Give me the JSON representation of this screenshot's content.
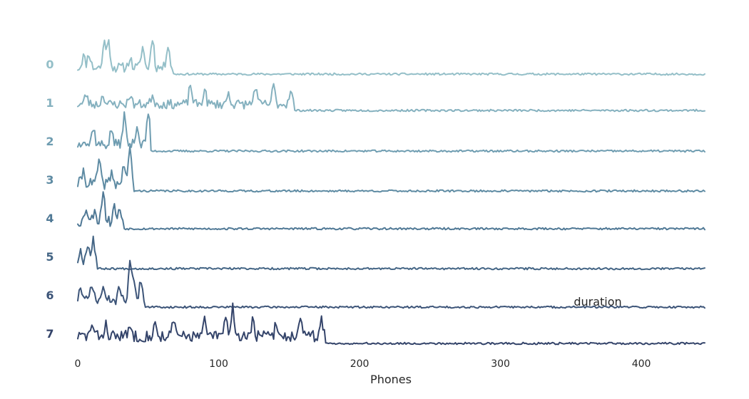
{
  "chart_data": {
    "type": "line",
    "title": "",
    "xlabel": "Phones",
    "ylabel": "",
    "xlim": [
      0,
      445
    ],
    "x_ticks": [
      0,
      100,
      200,
      300,
      400
    ],
    "grid": false,
    "annotation": "duration",
    "colors": [
      "#94bfc8",
      "#85b1bf",
      "#6f9db1",
      "#5e8ba3",
      "#4f7895",
      "#446585",
      "#3c5478",
      "#34446a"
    ],
    "series": [
      {
        "name": "0",
        "active_end": 67,
        "peaks": [
          [
            4,
            0.35
          ],
          [
            8,
            0.45
          ],
          [
            19,
            0.85
          ],
          [
            22,
            0.75
          ],
          [
            37,
            0.3
          ],
          [
            46,
            0.65
          ],
          [
            53,
            0.95
          ],
          [
            64,
            0.75
          ]
        ],
        "noise": 0.3,
        "seed": 11
      },
      {
        "name": "1",
        "active_end": 153,
        "peaks": [
          [
            6,
            0.3
          ],
          [
            18,
            0.3
          ],
          [
            37,
            0.3
          ],
          [
            53,
            0.3
          ],
          [
            80,
            0.6
          ],
          [
            90,
            0.45
          ],
          [
            107,
            0.35
          ],
          [
            126,
            0.55
          ],
          [
            139,
            0.55
          ],
          [
            151,
            0.45
          ]
        ],
        "noise": 0.28,
        "seed": 23
      },
      {
        "name": "2",
        "active_end": 51,
        "peaks": [
          [
            4,
            0.2
          ],
          [
            11,
            0.55
          ],
          [
            24,
            0.45
          ],
          [
            33,
            0.9
          ],
          [
            42,
            0.6
          ],
          [
            50,
            1.0
          ]
        ],
        "noise": 0.3,
        "seed": 37
      },
      {
        "name": "3",
        "active_end": 39,
        "peaks": [
          [
            4,
            0.4
          ],
          [
            15,
            0.7
          ],
          [
            24,
            0.3
          ],
          [
            33,
            0.6
          ],
          [
            37,
            1.0
          ]
        ],
        "noise": 0.35,
        "seed": 41
      },
      {
        "name": "4",
        "active_end": 32,
        "peaks": [
          [
            6,
            0.45
          ],
          [
            12,
            0.4
          ],
          [
            18,
            1.0
          ],
          [
            26,
            0.45
          ],
          [
            30,
            0.35
          ]
        ],
        "noise": 0.35,
        "seed": 53
      },
      {
        "name": "5",
        "active_end": 13,
        "peaks": [
          [
            2,
            0.35
          ],
          [
            7,
            0.6
          ],
          [
            11,
            0.75
          ]
        ],
        "noise": 0.3,
        "seed": 67
      },
      {
        "name": "6",
        "active_end": 47,
        "peaks": [
          [
            2,
            0.4
          ],
          [
            10,
            0.55
          ],
          [
            18,
            0.4
          ],
          [
            30,
            0.45
          ],
          [
            37,
            1.2
          ],
          [
            40,
            0.65
          ],
          [
            45,
            0.65
          ]
        ],
        "noise": 0.3,
        "seed": 71
      },
      {
        "name": "7",
        "active_end": 175,
        "peaks": [
          [
            10,
            0.35
          ],
          [
            20,
            0.35
          ],
          [
            37,
            0.3
          ],
          [
            55,
            0.35
          ],
          [
            68,
            0.45
          ],
          [
            90,
            0.45
          ],
          [
            105,
            0.55
          ],
          [
            110,
            0.9
          ],
          [
            124,
            0.45
          ],
          [
            141,
            0.4
          ],
          [
            158,
            0.45
          ],
          [
            173,
            0.5
          ]
        ],
        "noise": 0.35,
        "seed": 83
      }
    ]
  }
}
